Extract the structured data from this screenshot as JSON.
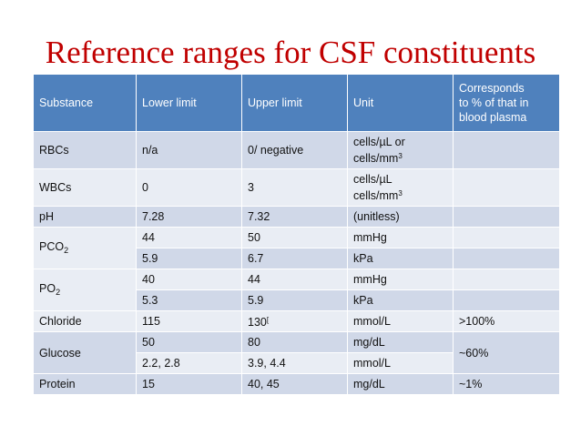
{
  "title": "Reference ranges for CSF constituents",
  "table": {
    "headers": {
      "substance": "Substance",
      "lower": "Lower limit",
      "upper": "Upper limit",
      "unit": "Unit",
      "plasma_line1": "Corresponds",
      "plasma_line2": "to % of that in",
      "plasma_line3": "blood plasma"
    },
    "rbcs": {
      "substance": "RBCs",
      "lower": "n/a",
      "upper": "0/ negative",
      "unit_line1": "cells/µL or",
      "unit_line2_base": "cells/mm",
      "unit_line2_sup": "3",
      "plasma": ""
    },
    "wbcs": {
      "substance": "WBCs",
      "lower": "0",
      "upper": "3",
      "unit_line1": "cells/µL",
      "unit_line2_base": "cells/mm",
      "unit_line2_sup": "3",
      "plasma": ""
    },
    "ph": {
      "substance": "pH",
      "lower": "7.28",
      "upper": "7.32",
      "unit": "(unitless)",
      "plasma": ""
    },
    "pco2": {
      "substance_base": "PCO",
      "substance_sub": "2",
      "rows": [
        {
          "lower": "44",
          "upper": "50",
          "unit": "mmHg",
          "plasma": ""
        },
        {
          "lower": "5.9",
          "upper": "6.7",
          "unit": "kPa",
          "plasma": ""
        }
      ]
    },
    "po2": {
      "substance_base": "PO",
      "substance_sub": "2",
      "rows": [
        {
          "lower": "40",
          "upper": "44",
          "unit": "mmHg",
          "plasma": ""
        },
        {
          "lower": "5.3",
          "upper": "5.9",
          "unit": "kPa",
          "plasma": ""
        }
      ]
    },
    "chloride": {
      "substance": "Chloride",
      "lower": "115",
      "upper": "130",
      "upper_mark": "[",
      "unit": "mmol/L",
      "plasma": ">100%"
    },
    "glucose": {
      "substance": "Glucose",
      "plasma": "~60%",
      "rows": [
        {
          "lower": "50",
          "upper": "80",
          "unit": "mg/dL"
        },
        {
          "lower": "2.2, 2.8",
          "upper": "3.9, 4.4",
          "unit": "mmol/L"
        }
      ]
    },
    "protein": {
      "substance": "Protein",
      "lower": "15",
      "upper": "40, 45",
      "unit": "mg/dL",
      "plasma": "~1%"
    }
  }
}
